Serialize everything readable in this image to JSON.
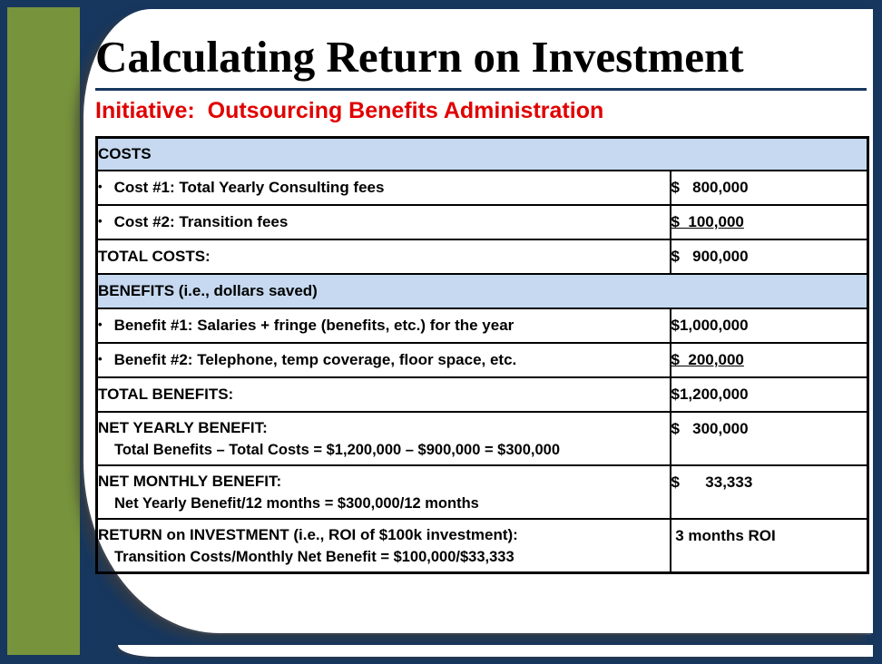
{
  "slide": {
    "title": "Calculating Return on Investment",
    "subtitle": "Initiative:  Outsourcing Benefits Administration"
  },
  "table": {
    "bullet_char": "•",
    "rows": [
      {
        "type": "section",
        "label": "COSTS"
      },
      {
        "type": "item",
        "label": "Cost #1: Total Yearly Consulting fees",
        "value": "$   800,000"
      },
      {
        "type": "item",
        "label": "Cost #2: Transition fees",
        "value": "$  100,000"
      },
      {
        "type": "total",
        "label": "TOTAL COSTS:",
        "value": "$   900,000"
      },
      {
        "type": "section",
        "label": "BENEFITS (i.e., dollars saved)"
      },
      {
        "type": "item",
        "label": "Benefit #1: Salaries + fringe (benefits, etc.) for the year",
        "value": "$1,000,000"
      },
      {
        "type": "item",
        "label": "Benefit #2: Telephone, temp coverage, floor space, etc.",
        "value": "$  200,000"
      },
      {
        "type": "total",
        "label": "TOTAL BENEFITS:",
        "value": "$1,200,000"
      },
      {
        "type": "two_line",
        "line1": "NET YEARLY BENEFIT:",
        "line2": "Total Benefits – Total Costs = $1,200,000 – $900,000 = $300,000",
        "value": "$   300,000"
      },
      {
        "type": "two_line",
        "line1": "NET MONTHLY BENEFIT:",
        "line2": "Net Yearly Benefit/12 months = $300,000/12 months",
        "value": "$      33,333"
      },
      {
        "type": "two_line",
        "line1": "RETURN on INVESTMENT (i.e., ROI of $100k investment):",
        "line2": "Transition Costs/Monthly Net Benefit = $100,000/$33,333",
        "value": " 3 months ROI"
      }
    ]
  }
}
